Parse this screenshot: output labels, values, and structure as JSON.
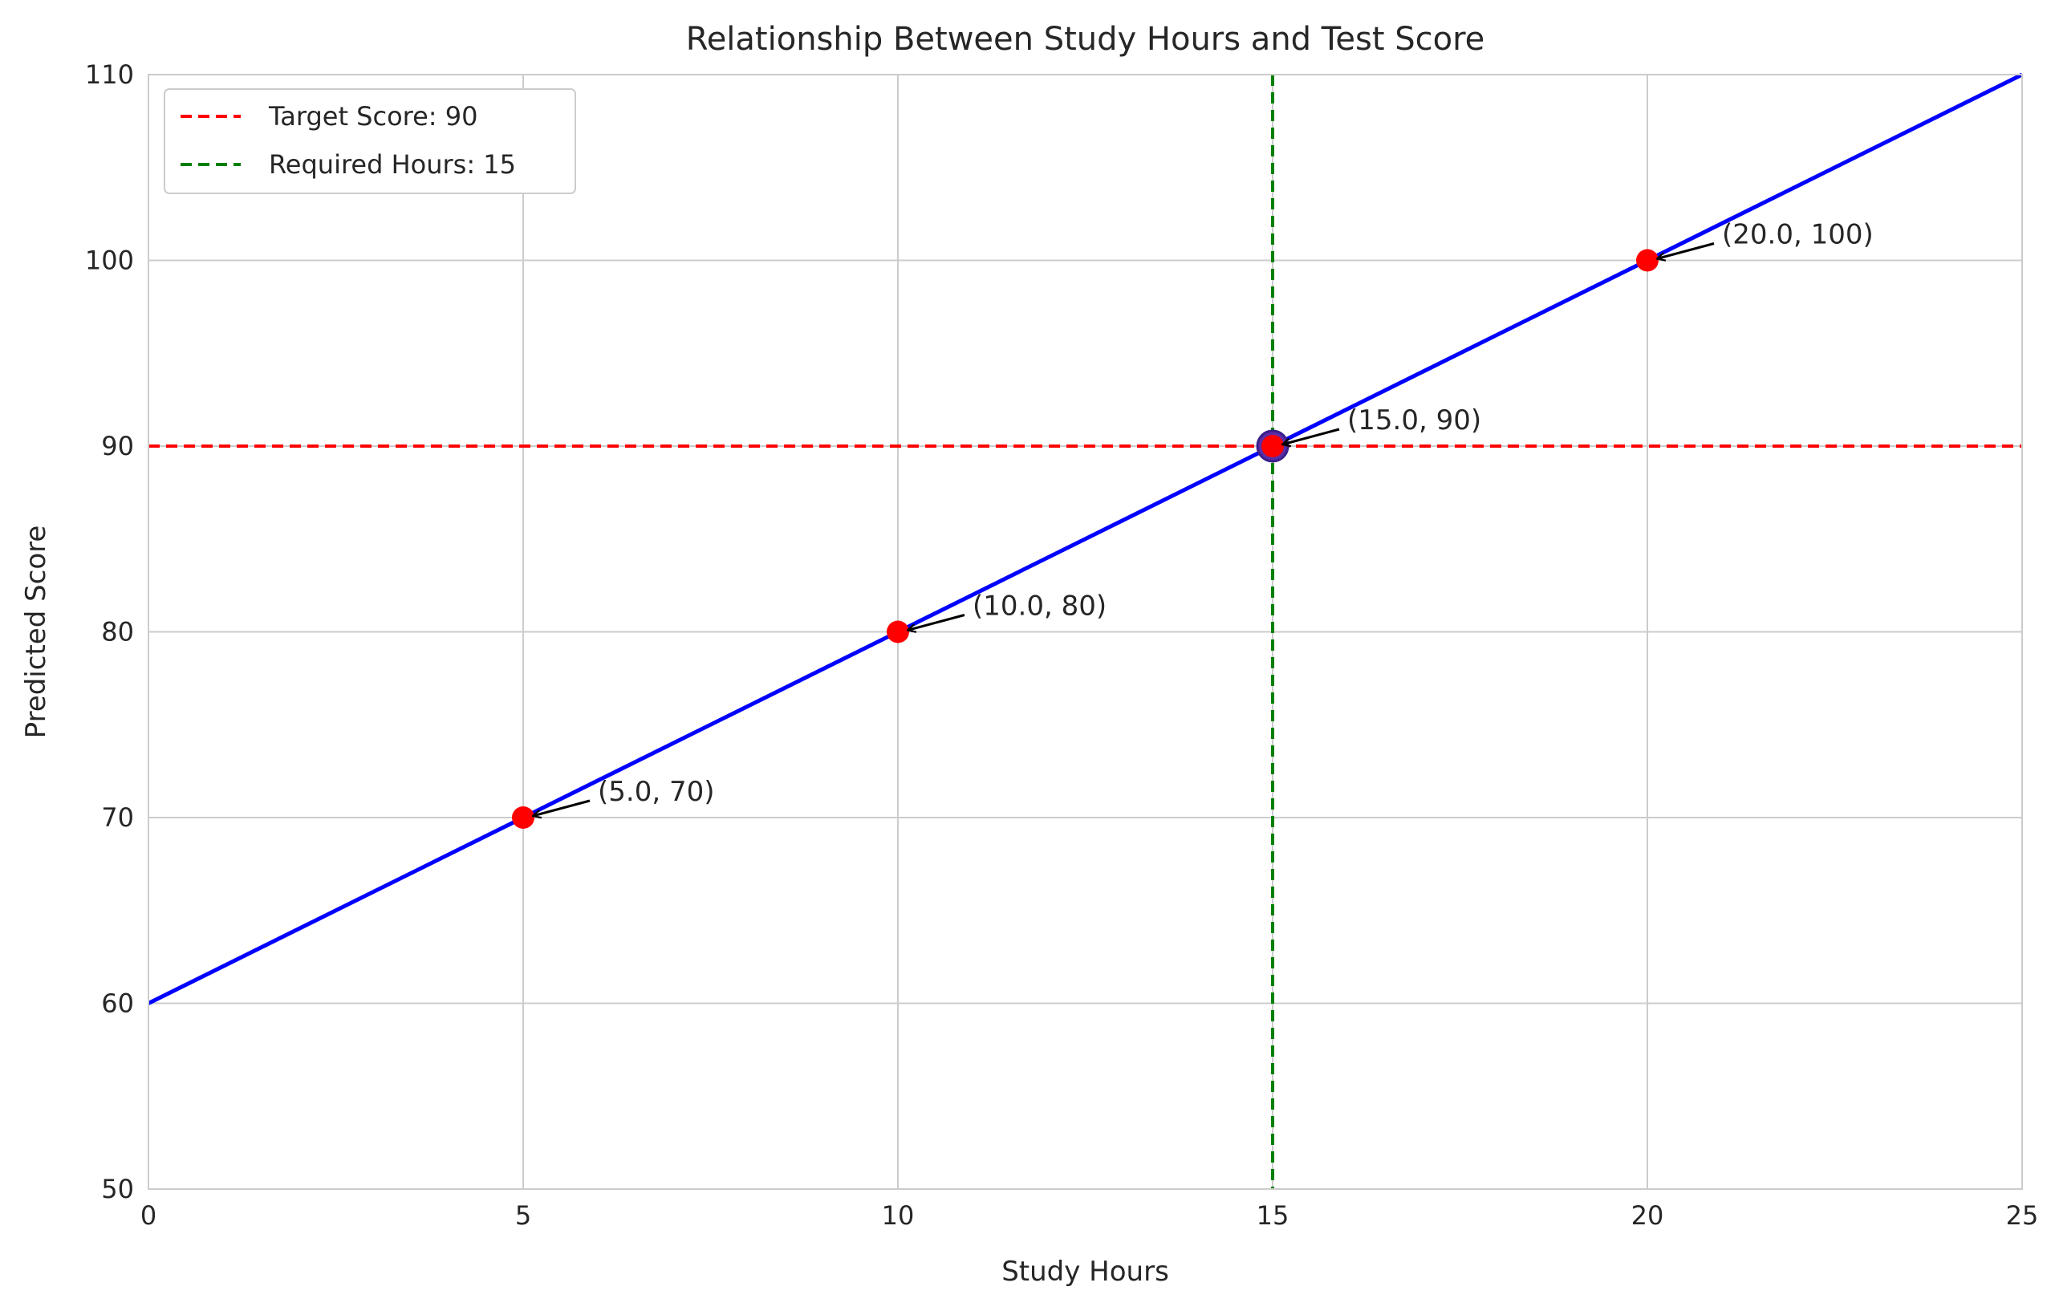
{
  "chart_data": {
    "type": "line",
    "title": "Relationship Between Study Hours and Test Score",
    "xlabel": "Study Hours",
    "ylabel": "Predicted Score",
    "xlim": [
      0,
      25
    ],
    "ylim": [
      50,
      110
    ],
    "xticks": [
      "0",
      "5",
      "10",
      "15",
      "20",
      "25"
    ],
    "yticks": [
      "50",
      "60",
      "70",
      "80",
      "90",
      "100",
      "110"
    ],
    "grid": true,
    "legend_position": "upper-left",
    "line": {
      "x": [
        0,
        25
      ],
      "y": [
        60,
        110
      ],
      "color": "#0000ff"
    },
    "points": [
      {
        "x": 5,
        "y": 70,
        "label": "(5.0, 70)"
      },
      {
        "x": 10,
        "y": 80,
        "label": "(10.0, 80)"
      },
      {
        "x": 15,
        "y": 90,
        "label": "(15.0, 90)"
      },
      {
        "x": 20,
        "y": 100,
        "label": "(20.0, 100)"
      }
    ],
    "highlight_point": {
      "x": 15,
      "y": 90
    },
    "hline": {
      "y": 90,
      "label": "Target Score: 90",
      "color": "#ff0000"
    },
    "vline": {
      "x": 15,
      "label": "Required Hours: 15",
      "color": "#008000"
    },
    "point_color": "#ff0000",
    "highlight_color": "#5a2ea6"
  }
}
